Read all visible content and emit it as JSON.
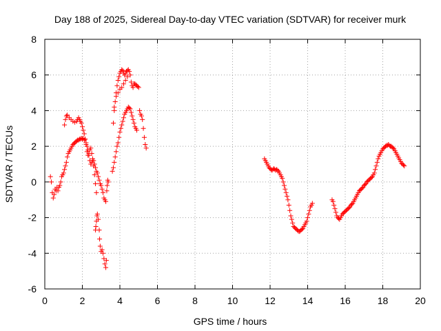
{
  "chart_data": {
    "type": "scatter",
    "title": "Day 188 of 2025, Sidereal Day-to-day VTEC variation (SDTVAR) for receiver murk",
    "xlabel": "GPS time / hours",
    "ylabel": "SDTVAR / TECUs",
    "xlim": [
      0,
      20
    ],
    "ylim": [
      -6,
      8
    ],
    "xticks": [
      "0",
      "2",
      "4",
      "6",
      "8",
      "10",
      "12",
      "14",
      "16",
      "18",
      "20"
    ],
    "yticks": [
      "-6",
      "-4",
      "-2",
      "0",
      "2",
      "4",
      "6",
      "8"
    ],
    "grid": true,
    "marker": "+",
    "series_color": "#ff0000",
    "series": [
      {
        "name": "SDTVAR",
        "points": [
          [
            0.3,
            0.3
          ],
          [
            0.35,
            0.0
          ],
          [
            0.4,
            -0.6
          ],
          [
            0.45,
            -0.9
          ],
          [
            0.5,
            -0.7
          ],
          [
            0.55,
            -0.4
          ],
          [
            0.6,
            -0.5
          ],
          [
            0.65,
            -0.3
          ],
          [
            0.7,
            -0.5
          ],
          [
            0.75,
            -0.3
          ],
          [
            0.8,
            -0.2
          ],
          [
            0.85,
            0.0
          ],
          [
            0.9,
            0.3
          ],
          [
            0.95,
            0.4
          ],
          [
            1.0,
            0.5
          ],
          [
            1.05,
            0.7
          ],
          [
            1.1,
            0.9
          ],
          [
            1.15,
            1.1
          ],
          [
            1.2,
            1.4
          ],
          [
            1.25,
            1.6
          ],
          [
            1.3,
            1.7
          ],
          [
            1.35,
            1.8
          ],
          [
            1.4,
            1.9
          ],
          [
            1.45,
            2.0
          ],
          [
            1.5,
            2.1
          ],
          [
            1.55,
            2.15
          ],
          [
            1.6,
            2.2
          ],
          [
            1.65,
            2.25
          ],
          [
            1.7,
            2.3
          ],
          [
            1.75,
            2.35
          ],
          [
            1.8,
            2.35
          ],
          [
            1.85,
            2.4
          ],
          [
            1.9,
            2.4
          ],
          [
            1.95,
            2.45
          ],
          [
            2.0,
            2.4
          ],
          [
            2.05,
            2.45
          ],
          [
            2.1,
            2.35
          ],
          [
            2.15,
            2.4
          ],
          [
            2.2,
            2.2
          ],
          [
            2.25,
            2.0
          ],
          [
            2.3,
            1.8
          ],
          [
            2.35,
            1.5
          ],
          [
            2.4,
            1.2
          ],
          [
            2.45,
            1.0
          ],
          [
            2.5,
            1.1
          ],
          [
            2.55,
            1.3
          ],
          [
            2.6,
            1.2
          ],
          [
            2.65,
            1.0
          ],
          [
            2.7,
            0.8
          ],
          [
            2.75,
            0.6
          ],
          [
            2.8,
            0.5
          ],
          [
            2.85,
            0.3
          ],
          [
            2.9,
            0.1
          ],
          [
            2.95,
            -0.1
          ],
          [
            3.0,
            -0.2
          ],
          [
            3.05,
            -0.4
          ],
          [
            3.1,
            -0.6
          ],
          [
            3.15,
            -0.9
          ],
          [
            3.2,
            -1.0
          ],
          [
            3.25,
            -1.1
          ],
          [
            1.05,
            3.2
          ],
          [
            1.1,
            3.5
          ],
          [
            1.15,
            3.7
          ],
          [
            1.2,
            3.75
          ],
          [
            1.3,
            3.6
          ],
          [
            1.4,
            3.5
          ],
          [
            1.5,
            3.4
          ],
          [
            1.6,
            3.35
          ],
          [
            1.7,
            3.4
          ],
          [
            1.75,
            3.5
          ],
          [
            1.8,
            3.6
          ],
          [
            1.85,
            3.5
          ],
          [
            1.9,
            3.4
          ],
          [
            1.95,
            3.3
          ],
          [
            2.0,
            3.1
          ],
          [
            2.05,
            2.9
          ],
          [
            2.1,
            2.7
          ],
          [
            2.15,
            2.4
          ],
          [
            2.2,
            2.1
          ],
          [
            2.25,
            1.7
          ],
          [
            2.3,
            1.5
          ],
          [
            2.35,
            1.6
          ],
          [
            2.4,
            1.8
          ],
          [
            2.45,
            1.9
          ],
          [
            2.5,
            1.6
          ],
          [
            2.55,
            1.2
          ],
          [
            2.6,
            0.9
          ],
          [
            2.65,
            0.4
          ],
          [
            2.7,
            -0.1
          ],
          [
            2.75,
            -0.6
          ],
          [
            2.7,
            -2.7
          ],
          [
            2.72,
            -2.5
          ],
          [
            2.75,
            -2.2
          ],
          [
            2.78,
            -1.9
          ],
          [
            2.8,
            -1.8
          ],
          [
            2.85,
            -2.1
          ],
          [
            2.9,
            -2.7
          ],
          [
            2.92,
            -3.2
          ],
          [
            2.95,
            -3.6
          ],
          [
            3.0,
            -3.9
          ],
          [
            3.05,
            -3.8
          ],
          [
            3.1,
            -4.0
          ],
          [
            3.15,
            -4.3
          ],
          [
            3.2,
            -4.6
          ],
          [
            3.25,
            -4.8
          ],
          [
            3.28,
            -4.4
          ],
          [
            3.3,
            -0.5
          ],
          [
            3.32,
            -0.2
          ],
          [
            3.35,
            0.1
          ],
          [
            3.38,
            0.0
          ],
          [
            3.6,
            0.6
          ],
          [
            3.65,
            0.8
          ],
          [
            3.7,
            1.1
          ],
          [
            3.75,
            1.4
          ],
          [
            3.8,
            1.7
          ],
          [
            3.85,
            2.0
          ],
          [
            3.9,
            2.2
          ],
          [
            3.95,
            2.5
          ],
          [
            4.0,
            2.8
          ],
          [
            4.05,
            3.0
          ],
          [
            4.1,
            3.2
          ],
          [
            4.15,
            3.4
          ],
          [
            4.2,
            3.6
          ],
          [
            4.25,
            3.8
          ],
          [
            4.3,
            3.9
          ],
          [
            4.35,
            4.0
          ],
          [
            4.4,
            4.1
          ],
          [
            4.45,
            4.2
          ],
          [
            4.5,
            4.15
          ],
          [
            4.55,
            4.1
          ],
          [
            4.6,
            3.9
          ],
          [
            4.65,
            3.7
          ],
          [
            4.7,
            3.5
          ],
          [
            4.75,
            3.3
          ],
          [
            4.8,
            3.1
          ],
          [
            4.85,
            3.0
          ],
          [
            4.9,
            2.9
          ],
          [
            3.65,
            3.3
          ],
          [
            3.7,
            4.0
          ],
          [
            3.75,
            4.5
          ],
          [
            3.8,
            5.0
          ],
          [
            3.85,
            5.4
          ],
          [
            3.9,
            5.7
          ],
          [
            3.95,
            5.9
          ],
          [
            4.0,
            6.1
          ],
          [
            4.05,
            6.2
          ],
          [
            4.1,
            6.3
          ],
          [
            4.15,
            6.25
          ],
          [
            4.2,
            6.1
          ],
          [
            4.25,
            6.0
          ],
          [
            4.3,
            6.1
          ],
          [
            4.35,
            6.2
          ],
          [
            4.4,
            6.25
          ],
          [
            4.45,
            6.3
          ],
          [
            4.5,
            6.2
          ],
          [
            4.55,
            6.0
          ],
          [
            4.6,
            5.6
          ],
          [
            4.65,
            5.4
          ],
          [
            4.7,
            5.3
          ],
          [
            4.75,
            5.5
          ],
          [
            4.8,
            5.5
          ],
          [
            4.85,
            5.45
          ],
          [
            4.9,
            5.4
          ],
          [
            4.95,
            5.35
          ],
          [
            5.0,
            5.3
          ],
          [
            3.7,
            4.2
          ],
          [
            3.8,
            4.8
          ],
          [
            3.9,
            5.0
          ],
          [
            4.0,
            5.2
          ],
          [
            4.1,
            5.3
          ],
          [
            4.2,
            5.5
          ],
          [
            4.3,
            5.7
          ],
          [
            4.4,
            5.9
          ],
          [
            5.05,
            4.0
          ],
          [
            5.1,
            3.8
          ],
          [
            5.15,
            3.7
          ],
          [
            5.2,
            3.5
          ],
          [
            5.25,
            3.0
          ],
          [
            5.3,
            2.5
          ],
          [
            5.35,
            2.1
          ],
          [
            5.4,
            1.9
          ],
          [
            11.7,
            1.3
          ],
          [
            11.75,
            1.2
          ],
          [
            11.8,
            1.1
          ],
          [
            11.85,
            1.0
          ],
          [
            11.9,
            0.9
          ],
          [
            11.95,
            0.8
          ],
          [
            12.0,
            0.75
          ],
          [
            12.05,
            0.7
          ],
          [
            12.1,
            0.65
          ],
          [
            12.15,
            0.7
          ],
          [
            12.2,
            0.75
          ],
          [
            12.25,
            0.7
          ],
          [
            12.3,
            0.65
          ],
          [
            12.35,
            0.7
          ],
          [
            12.4,
            0.65
          ],
          [
            12.45,
            0.6
          ],
          [
            12.5,
            0.5
          ],
          [
            12.55,
            0.4
          ],
          [
            12.6,
            0.3
          ],
          [
            12.65,
            0.2
          ],
          [
            12.7,
            0.0
          ],
          [
            12.75,
            -0.2
          ],
          [
            12.8,
            -0.4
          ],
          [
            12.85,
            -0.6
          ],
          [
            12.9,
            -0.8
          ],
          [
            12.95,
            -1.0
          ],
          [
            13.0,
            -1.3
          ],
          [
            13.05,
            -1.6
          ],
          [
            13.1,
            -1.9
          ],
          [
            13.15,
            -2.1
          ],
          [
            13.2,
            -2.3
          ],
          [
            13.25,
            -2.5
          ],
          [
            13.3,
            -2.55
          ],
          [
            13.35,
            -2.6
          ],
          [
            13.4,
            -2.65
          ],
          [
            13.45,
            -2.7
          ],
          [
            13.5,
            -2.75
          ],
          [
            13.55,
            -2.78
          ],
          [
            13.6,
            -2.75
          ],
          [
            13.65,
            -2.7
          ],
          [
            13.7,
            -2.65
          ],
          [
            13.75,
            -2.6
          ],
          [
            13.8,
            -2.5
          ],
          [
            13.85,
            -2.4
          ],
          [
            13.9,
            -2.3
          ],
          [
            13.95,
            -2.2
          ],
          [
            14.0,
            -2.0
          ],
          [
            14.05,
            -1.8
          ],
          [
            14.1,
            -1.6
          ],
          [
            14.15,
            -1.4
          ],
          [
            14.2,
            -1.3
          ],
          [
            14.25,
            -1.2
          ],
          [
            15.3,
            -1.0
          ],
          [
            15.35,
            -1.1
          ],
          [
            15.4,
            -1.3
          ],
          [
            15.45,
            -1.5
          ],
          [
            15.5,
            -1.7
          ],
          [
            15.55,
            -1.9
          ],
          [
            15.6,
            -2.0
          ],
          [
            15.65,
            -2.05
          ],
          [
            15.7,
            -2.1
          ],
          [
            15.75,
            -2.0
          ],
          [
            15.8,
            -1.9
          ],
          [
            15.85,
            -1.8
          ],
          [
            15.9,
            -1.75
          ],
          [
            15.95,
            -1.7
          ],
          [
            16.0,
            -1.65
          ],
          [
            16.05,
            -1.6
          ],
          [
            16.1,
            -1.55
          ],
          [
            16.15,
            -1.5
          ],
          [
            16.2,
            -1.45
          ],
          [
            16.25,
            -1.4
          ],
          [
            16.3,
            -1.3
          ],
          [
            16.35,
            -1.25
          ],
          [
            16.4,
            -1.2
          ],
          [
            16.45,
            -1.1
          ],
          [
            16.5,
            -1.0
          ],
          [
            16.55,
            -0.9
          ],
          [
            16.6,
            -0.8
          ],
          [
            16.65,
            -0.7
          ],
          [
            16.7,
            -0.6
          ],
          [
            16.75,
            -0.5
          ],
          [
            16.8,
            -0.45
          ],
          [
            16.85,
            -0.4
          ],
          [
            16.9,
            -0.35
          ],
          [
            16.95,
            -0.3
          ],
          [
            17.0,
            -0.2
          ],
          [
            17.05,
            -0.15
          ],
          [
            17.1,
            -0.1
          ],
          [
            17.15,
            0.0
          ],
          [
            17.2,
            0.05
          ],
          [
            17.25,
            0.1
          ],
          [
            17.3,
            0.15
          ],
          [
            17.35,
            0.2
          ],
          [
            17.4,
            0.25
          ],
          [
            17.45,
            0.3
          ],
          [
            17.5,
            0.4
          ],
          [
            17.55,
            0.5
          ],
          [
            17.6,
            0.7
          ],
          [
            17.65,
            0.9
          ],
          [
            17.7,
            1.1
          ],
          [
            17.75,
            1.3
          ],
          [
            17.8,
            1.45
          ],
          [
            17.85,
            1.55
          ],
          [
            17.9,
            1.65
          ],
          [
            17.95,
            1.75
          ],
          [
            18.0,
            1.85
          ],
          [
            18.05,
            1.9
          ],
          [
            18.1,
            1.95
          ],
          [
            18.15,
            2.0
          ],
          [
            18.2,
            2.05
          ],
          [
            18.25,
            2.05
          ],
          [
            18.3,
            2.1
          ],
          [
            18.35,
            2.05
          ],
          [
            18.4,
            2.0
          ],
          [
            18.45,
            2.0
          ],
          [
            18.5,
            1.95
          ],
          [
            18.55,
            1.9
          ],
          [
            18.6,
            1.85
          ],
          [
            18.65,
            1.75
          ],
          [
            18.7,
            1.65
          ],
          [
            18.75,
            1.55
          ],
          [
            18.8,
            1.45
          ],
          [
            18.85,
            1.35
          ],
          [
            18.9,
            1.25
          ],
          [
            18.95,
            1.15
          ],
          [
            19.0,
            1.05
          ],
          [
            19.05,
            1.0
          ],
          [
            19.1,
            0.95
          ],
          [
            19.15,
            0.9
          ]
        ]
      }
    ]
  }
}
